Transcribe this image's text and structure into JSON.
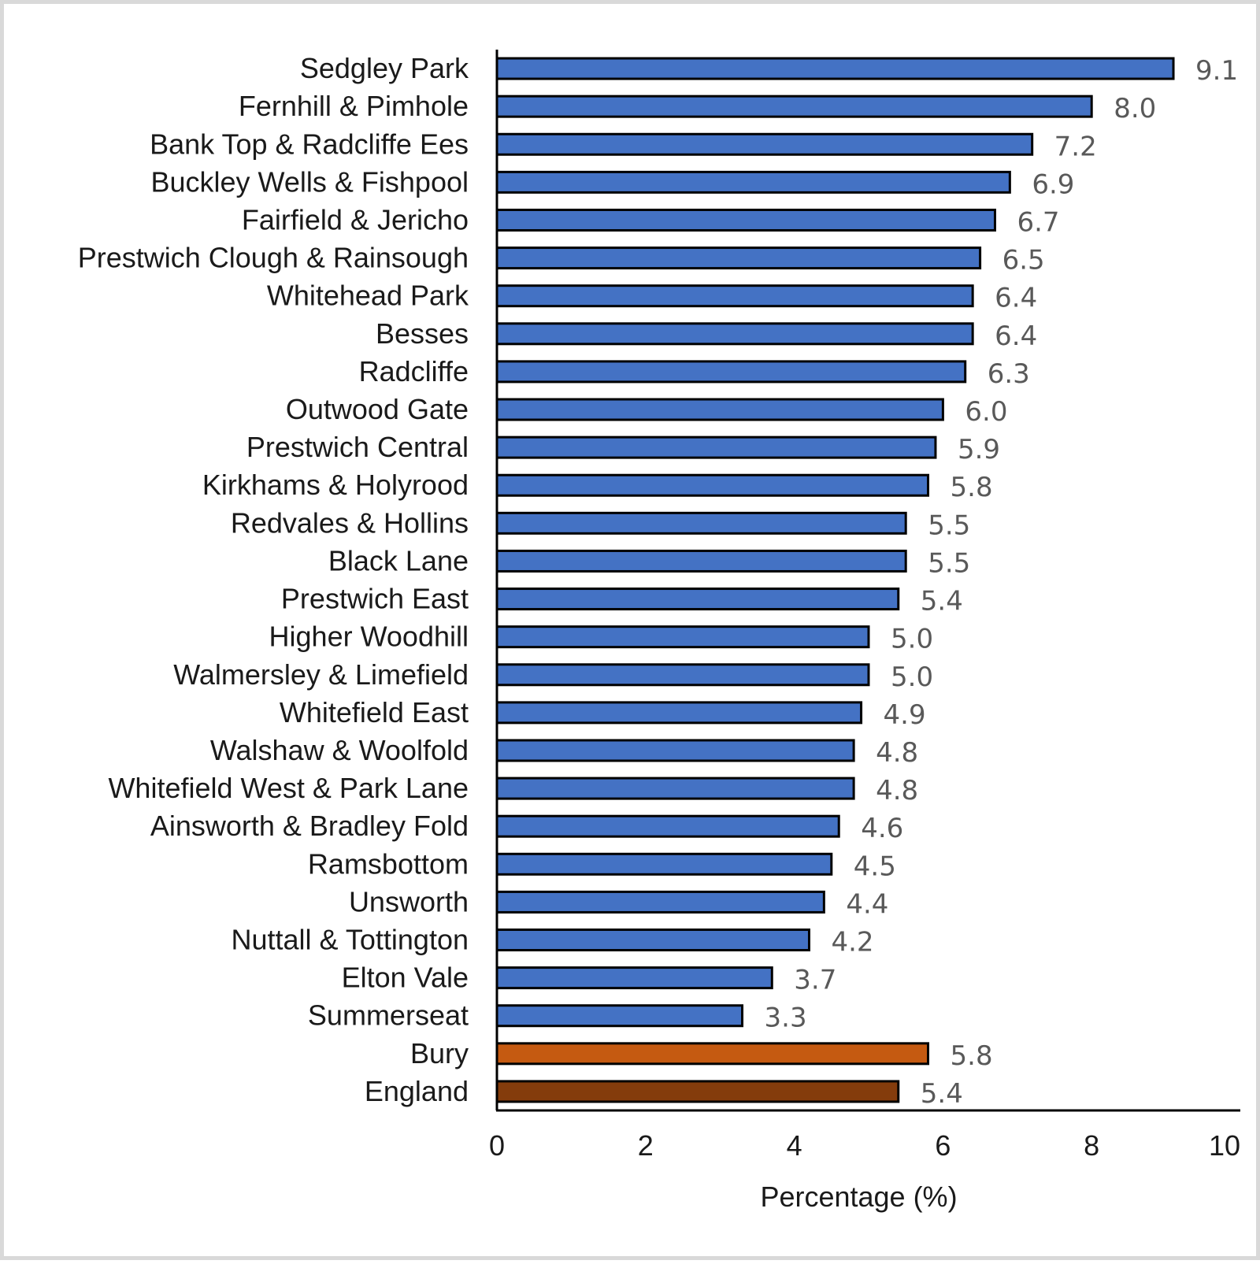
{
  "chart_data": {
    "type": "bar",
    "orientation": "horizontal",
    "title": "",
    "xlabel": "Percentage (%)",
    "ylabel": "",
    "xlim": [
      0,
      10
    ],
    "xticks": [
      "0",
      "2",
      "4",
      "6",
      "8",
      "10"
    ],
    "grid": false,
    "legend": "none",
    "categories": [
      "Sedgley Park",
      "Fernhill & Pimhole",
      "Bank Top & Radcliffe Ees",
      "Buckley Wells & Fishpool",
      "Fairfield & Jericho",
      "Prestwich Clough & Rainsough",
      "Whitehead Park",
      "Besses",
      "Radcliffe",
      "Outwood Gate",
      "Prestwich Central",
      "Kirkhams & Holyrood",
      "Redvales & Hollins",
      "Black Lane",
      "Prestwich East",
      "Higher Woodhill",
      "Walmersley & Limefield",
      "Whitefield East",
      "Walshaw & Woolfold",
      "Whitefield West & Park Lane",
      "Ainsworth & Bradley Fold",
      "Ramsbottom",
      "Unsworth",
      "Nuttall & Tottington",
      "Elton Vale",
      "Summerseat",
      "Bury",
      "England"
    ],
    "values": [
      9.1,
      8.0,
      7.2,
      6.9,
      6.7,
      6.5,
      6.4,
      6.4,
      6.3,
      6.0,
      5.9,
      5.8,
      5.5,
      5.5,
      5.4,
      5.0,
      5.0,
      4.9,
      4.8,
      4.8,
      4.6,
      4.5,
      4.4,
      4.2,
      3.7,
      3.3,
      5.8,
      5.4
    ],
    "value_labels": [
      "9.1",
      "8.0",
      "7.2",
      "6.9",
      "6.7",
      "6.5",
      "6.4",
      "6.4",
      "6.3",
      "6.0",
      "5.9",
      "5.8",
      "5.5",
      "5.5",
      "5.4",
      "5.0",
      "5.0",
      "4.9",
      "4.8",
      "4.8",
      "4.6",
      "4.5",
      "4.4",
      "4.2",
      "3.7",
      "3.3",
      "5.8",
      "5.4"
    ],
    "colors": {
      "ward": "#4472c4",
      "Bury": "#c55a11",
      "England": "#843c0c",
      "bar_outline": "#000000",
      "axis": "#000000"
    }
  }
}
